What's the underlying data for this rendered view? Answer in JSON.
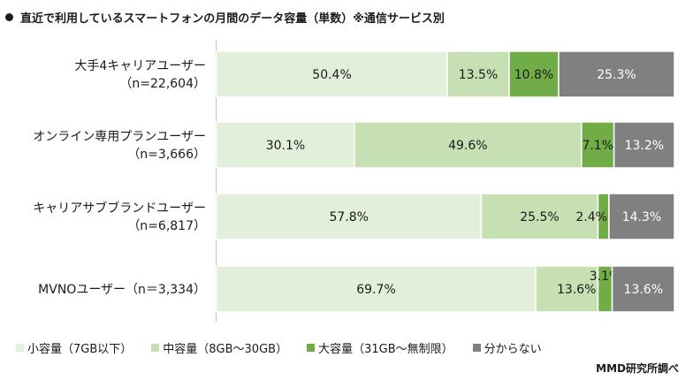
{
  "header": {
    "title": "直近で利用しているスマートフォンの月間のデータ容量（単数）※通信サービス別"
  },
  "source": "MMD研究所調べ",
  "colors": [
    "#e2efda",
    "#c6e0b4",
    "#70ad47",
    "#808080"
  ],
  "chart_data": {
    "type": "bar",
    "orientation": "horizontal",
    "stacked": true,
    "categories": [
      [
        "大手4キャリアユーザー",
        "（n=22,604）"
      ],
      [
        "オンライン専用プランユーザー",
        "（n=3,666）"
      ],
      [
        "キャリアサブブランドユーザー",
        "（n=6,817）"
      ],
      [
        "MVNOユーザー（n＝3,334）"
      ]
    ],
    "series": [
      {
        "name": "小容量（7GB以下）",
        "values": [
          50.4,
          30.1,
          57.8,
          69.7
        ]
      },
      {
        "name": "中容量（8GB～30GB）",
        "values": [
          13.5,
          49.6,
          25.5,
          13.6
        ]
      },
      {
        "name": "大容量（31GB～無制限）",
        "values": [
          10.8,
          7.1,
          2.4,
          3.1
        ]
      },
      {
        "name": "分からない",
        "values": [
          25.3,
          13.2,
          14.3,
          13.6
        ]
      }
    ],
    "value_labels": [
      [
        "50.4%",
        "13.5%",
        "10.8%",
        "25.3%"
      ],
      [
        "30.1%",
        "49.6%",
        "7.1%",
        "13.2%"
      ],
      [
        "57.8%",
        "25.5%",
        "2.4%",
        "14.3%"
      ],
      [
        "69.7%",
        "13.6%",
        "3.1%",
        "13.6%"
      ]
    ],
    "xlim": [
      0,
      100
    ],
    "grid": false,
    "legend": "bottom"
  }
}
